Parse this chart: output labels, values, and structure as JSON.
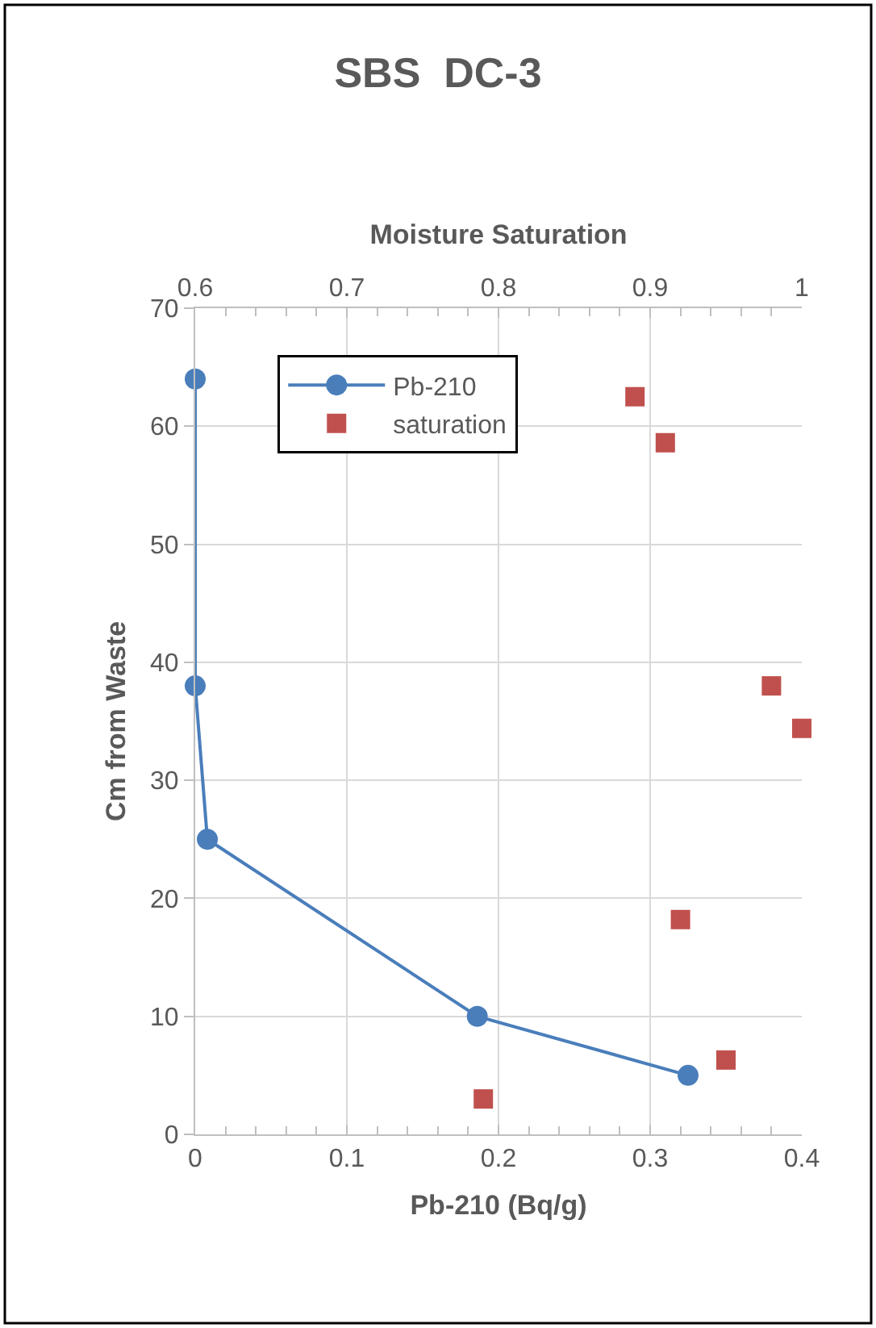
{
  "chart_data": {
    "type": "scatter",
    "title": "SBS  DC-3",
    "xlabel": "Pb-210 (Bq/g)",
    "x2label": "Moisture Saturation",
    "ylabel": "Cm from Waste",
    "xlim": [
      0,
      0.4
    ],
    "xticks": [
      0,
      0.1,
      0.2,
      0.3,
      0.4
    ],
    "x2lim": [
      0.6,
      1
    ],
    "x2ticks": [
      0.6,
      0.7,
      0.8,
      0.9,
      1
    ],
    "ylim": [
      0,
      70
    ],
    "yticks": [
      0,
      10,
      20,
      30,
      40,
      50,
      60,
      70
    ],
    "grid": true,
    "legend": "top left",
    "series": [
      {
        "name": "Pb-210",
        "type": "line",
        "marker": "circle",
        "line_style": "solid",
        "color": "#4a7ebb",
        "x": [
          0,
          0,
          0.008,
          0.186,
          0.325
        ],
        "values": [
          64,
          38,
          25,
          10,
          5
        ]
      },
      {
        "name": "saturation",
        "marker": "square",
        "axis": "x2",
        "color": "#c0504d",
        "x": [
          0.89,
          0.91,
          0.98,
          1.0,
          0.92,
          0.95,
          0.79
        ],
        "values": [
          62.5,
          58.6,
          38,
          34.4,
          18.2,
          6.3,
          3
        ]
      }
    ]
  }
}
